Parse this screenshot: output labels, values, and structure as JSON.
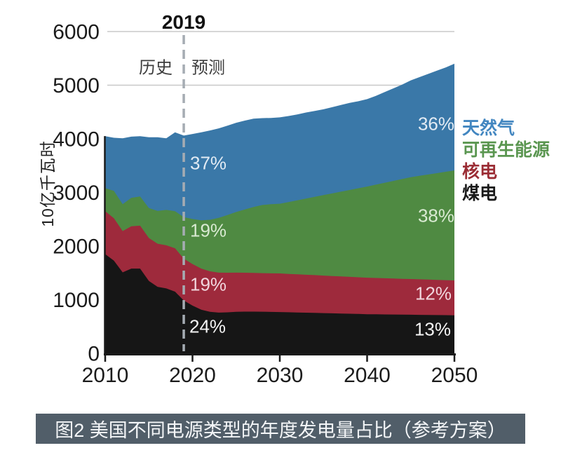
{
  "chart_data": {
    "type": "area",
    "stacked": true,
    "ylabel": "10亿千瓦时",
    "ylim": [
      0,
      6000
    ],
    "yticks": [
      0,
      1000,
      2000,
      3000,
      4000,
      5000,
      6000
    ],
    "xticks": [
      2010,
      2020,
      2030,
      2040,
      2050
    ],
    "grid": true,
    "grid_color": "#c8c8c8",
    "axis_color": "#1a1a1a",
    "x": [
      2010,
      2011,
      2012,
      2013,
      2014,
      2015,
      2016,
      2017,
      2018,
      2019,
      2020,
      2021,
      2022,
      2023,
      2024,
      2025,
      2026,
      2027,
      2028,
      2029,
      2030,
      2031,
      2032,
      2033,
      2034,
      2035,
      2036,
      2037,
      2038,
      2039,
      2040,
      2041,
      2042,
      2043,
      2044,
      2045,
      2046,
      2047,
      2048,
      2049,
      2050
    ],
    "series": [
      {
        "name": "煤电",
        "color": "#161616",
        "values": [
          1850,
          1730,
          1510,
          1580,
          1580,
          1350,
          1240,
          1210,
          1150,
          985,
          890,
          815,
          775,
          760,
          765,
          775,
          778,
          778,
          776,
          773,
          770,
          766,
          762,
          758,
          754,
          750,
          746,
          742,
          738,
          734,
          730,
          728,
          726,
          724,
          722,
          720,
          718,
          716,
          714,
          712,
          710
        ]
      },
      {
        "name": "核电",
        "color": "#9e2a3c",
        "values": [
          800,
          790,
          770,
          790,
          800,
          800,
          805,
          805,
          810,
          780,
          775,
          765,
          755,
          745,
          738,
          730,
          725,
          722,
          720,
          718,
          720,
          715,
          712,
          708,
          705,
          700,
          696,
          692,
          688,
          684,
          680,
          677,
          674,
          671,
          668,
          665,
          662,
          659,
          656,
          653,
          650
        ]
      },
      {
        "name": "可再生能源",
        "color": "#4f8a42",
        "values": [
          430,
          510,
          500,
          530,
          545,
          560,
          610,
          660,
          690,
          775,
          840,
          900,
          960,
          1020,
          1075,
          1130,
          1180,
          1230,
          1270,
          1290,
          1300,
          1340,
          1380,
          1420,
          1460,
          1500,
          1540,
          1580,
          1620,
          1660,
          1700,
          1740,
          1780,
          1820,
          1860,
          1900,
          1930,
          1960,
          1990,
          2020,
          2050
        ]
      },
      {
        "name": "天然气",
        "color": "#3a78a8",
        "values": [
          970,
          990,
          1230,
          1140,
          1125,
          1320,
          1375,
          1335,
          1470,
          1520,
          1585,
          1640,
          1665,
          1670,
          1667,
          1665,
          1657,
          1645,
          1619,
          1609,
          1610,
          1604,
          1601,
          1604,
          1601,
          1600,
          1608,
          1616,
          1624,
          1622,
          1630,
          1655,
          1690,
          1725,
          1760,
          1805,
          1840,
          1875,
          1910,
          1945,
          1990
        ]
      }
    ],
    "divider": {
      "year": 2019,
      "label": "2019",
      "history_label": "历史",
      "forecast_label": "预测",
      "line_color": "#a5acb3"
    },
    "annotations": [
      {
        "text": "37%",
        "color": "#e2ebf4",
        "x": 271,
        "y": 233,
        "anchor": "left"
      },
      {
        "text": "19%",
        "color": "#d9ead2",
        "x": 271,
        "y": 329,
        "anchor": "left"
      },
      {
        "text": "19%",
        "color": "#f1d6dd",
        "x": 271,
        "y": 406,
        "anchor": "left"
      },
      {
        "text": "24%",
        "color": "#f4f4f4",
        "x": 270,
        "y": 466,
        "anchor": "left"
      },
      {
        "text": "36%",
        "color": "#e2ebf4",
        "x": 622,
        "y": 177,
        "anchor": "center"
      },
      {
        "text": "38%",
        "color": "#d9ead2",
        "x": 622,
        "y": 308,
        "anchor": "center"
      },
      {
        "text": "12%",
        "color": "#f1d6dd",
        "x": 618,
        "y": 419,
        "anchor": "center"
      },
      {
        "text": "13%",
        "color": "#f4f4f4",
        "x": 617,
        "y": 470,
        "anchor": "center"
      }
    ],
    "legend": [
      {
        "label": "天然气",
        "color": "#4286c0"
      },
      {
        "label": "可再生能源",
        "color": "#5a9650"
      },
      {
        "label": "核电",
        "color": "#9b2d35"
      },
      {
        "label": "煤电",
        "color": "#1a1a1a"
      }
    ]
  },
  "caption": {
    "text": "图2 美国不同电源类型的年度发电量占比（参考方案）",
    "bg": "#515e69",
    "fg": "#f4f6f8"
  }
}
